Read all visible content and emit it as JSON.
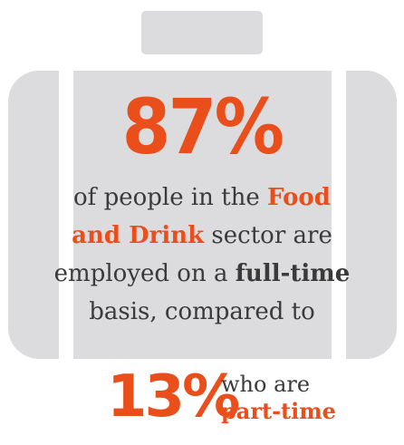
{
  "headline": {
    "percent": "87%",
    "line1_pre": "of people in the ",
    "line1_accent": "Food",
    "line2_accent": "and Drink",
    "line2_post": " sector are",
    "line3_pre": "employed on a ",
    "line3_bold": "full-time",
    "line4": "basis, compared to"
  },
  "secondary": {
    "percent": "13%",
    "line1": "who are",
    "line2": "part-time"
  },
  "colors": {
    "accent": "#e94e1b",
    "text": "#3a3a3a",
    "suitcase": "#dcdcde"
  },
  "icons": {
    "background": "suitcase-icon"
  }
}
